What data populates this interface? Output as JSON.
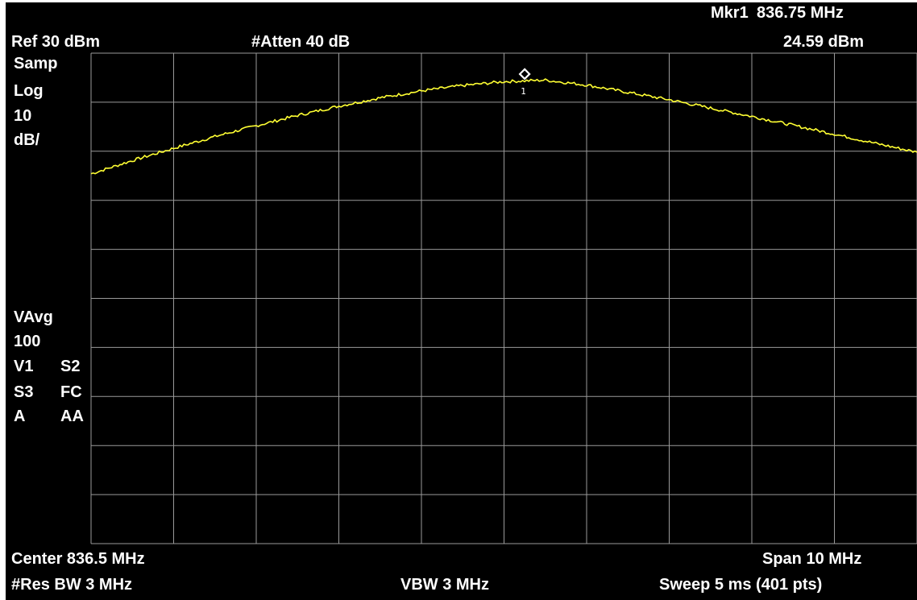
{
  "header": {
    "marker_label": "Mkr1",
    "marker_freq": "836.75 MHz",
    "ref_level": "Ref 30 dBm",
    "attenuation": "#Atten 40 dB",
    "marker_amplitude": "24.59 dBm"
  },
  "left_panel": {
    "detector": "Samp",
    "scale_type": "Log",
    "scale_value": "10",
    "scale_unit": "dB/",
    "avg_label": "VAvg",
    "avg_count": "100",
    "v1": "V1",
    "s2": "S2",
    "s3": "S3",
    "fc": "FC",
    "a": "A",
    "aa": "AA"
  },
  "footer": {
    "center": "Center 836.5 MHz",
    "span": "Span 10 MHz",
    "res_bw": "#Res BW 3 MHz",
    "vbw": "VBW 3 MHz",
    "sweep": "Sweep 5 ms (401 pts)"
  },
  "marker": {
    "number": "1",
    "x": 836.75,
    "y": 24.59
  },
  "colors": {
    "trace": "#ffff33",
    "grid": "#9a9a9a",
    "text": "#ffffff",
    "background": "#000000"
  },
  "chart_data": {
    "type": "line",
    "title": "",
    "xlabel": "",
    "ylabel": "",
    "xlim": [
      831.5,
      841.5
    ],
    "ylim": [
      -70,
      30
    ],
    "grid": true,
    "series": [
      {
        "x": [
          831.5,
          832.0,
          832.5,
          833.0,
          833.5,
          834.0,
          834.5,
          835.0,
          835.5,
          836.0,
          836.5,
          837.0,
          837.5,
          838.0,
          838.5,
          839.0,
          839.5,
          840.0,
          840.5,
          841.0,
          841.5
        ],
        "values": [
          5.4,
          8.1,
          10.6,
          13.0,
          15.2,
          17.3,
          19.2,
          20.9,
          22.3,
          23.4,
          24.2,
          24.5,
          23.5,
          22.0,
          20.5,
          18.8,
          17.1,
          15.3,
          13.5,
          11.6,
          9.8
        ]
      }
    ]
  }
}
